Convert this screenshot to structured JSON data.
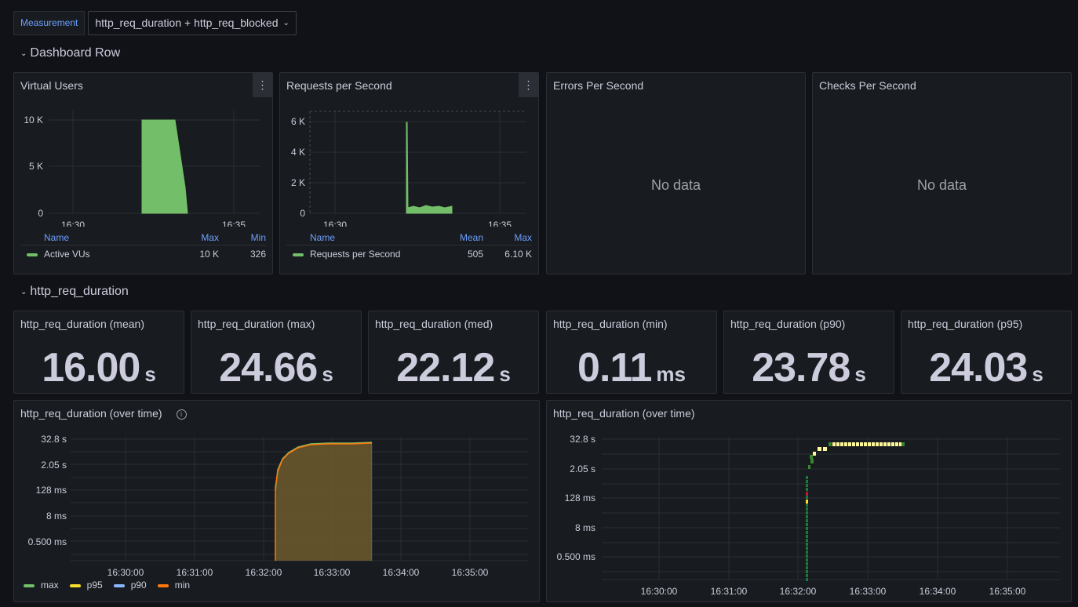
{
  "variables": {
    "label": "Measurement",
    "value": "http_req_duration + http_req_blocked"
  },
  "rows": {
    "dashboard_row": "Dashboard Row",
    "http_req_duration": "http_req_duration"
  },
  "panels": {
    "vus": {
      "title": "Virtual Users",
      "menu_icon": "kebab-icon",
      "yticks": [
        "10 K",
        "5 K",
        "0"
      ],
      "xticks": [
        "16:30",
        "16:35"
      ],
      "legend_headers": [
        "Name",
        "Max",
        "Min"
      ],
      "legend_rows": [
        {
          "name": "Active VUs",
          "max": "10 K",
          "min": "326",
          "color": "#73bf69"
        }
      ]
    },
    "rps": {
      "title": "Requests per Second",
      "menu_icon": "kebab-icon",
      "yticks": [
        "6 K",
        "4 K",
        "2 K",
        "0"
      ],
      "xticks": [
        "16:30",
        "16:35"
      ],
      "legend_headers": [
        "Name",
        "Mean",
        "Max"
      ],
      "legend_rows": [
        {
          "name": "Requests per Second",
          "mean": "505",
          "max": "6.10 K",
          "color": "#73bf69"
        }
      ]
    },
    "errors": {
      "title": "Errors Per Second",
      "message": "No data"
    },
    "checks": {
      "title": "Checks Per Second",
      "message": "No data"
    }
  },
  "stats": [
    {
      "title": "http_req_duration (mean)",
      "value": "16.00",
      "unit": "s"
    },
    {
      "title": "http_req_duration (max)",
      "value": "24.66",
      "unit": "s"
    },
    {
      "title": "http_req_duration (med)",
      "value": "22.12",
      "unit": "s"
    },
    {
      "title": "http_req_duration (min)",
      "value": "0.11",
      "unit": "ms"
    },
    {
      "title": "http_req_duration (p90)",
      "value": "23.78",
      "unit": "s"
    },
    {
      "title": "http_req_duration (p95)",
      "value": "24.03",
      "unit": "s"
    }
  ],
  "timeseries": {
    "title": "http_req_duration (over time)",
    "info_icon": "info-icon",
    "yticks": [
      "32.8 s",
      "2.05 s",
      "128 ms",
      "8 ms",
      "0.500 ms"
    ],
    "xticks": [
      "16:30:00",
      "16:31:00",
      "16:32:00",
      "16:33:00",
      "16:34:00",
      "16:35:00"
    ],
    "legend": [
      {
        "name": "max",
        "color": "#73bf69"
      },
      {
        "name": "p95",
        "color": "#fade2a"
      },
      {
        "name": "p90",
        "color": "#8ab8ff"
      },
      {
        "name": "min",
        "color": "#ff780a"
      }
    ]
  },
  "heatmap": {
    "title": "http_req_duration (over time)",
    "yticks": [
      "32.8 s",
      "2.05 s",
      "128 ms",
      "8 ms",
      "0.500 ms"
    ],
    "xticks": [
      "16:30:00",
      "16:31:00",
      "16:32:00",
      "16:33:00",
      "16:34:00",
      "16:35:00"
    ]
  },
  "colors": {
    "accent_green": "#73bf69",
    "link_blue": "#6e9fff",
    "panel_bg": "#181b1f",
    "page_bg": "#111217"
  }
}
